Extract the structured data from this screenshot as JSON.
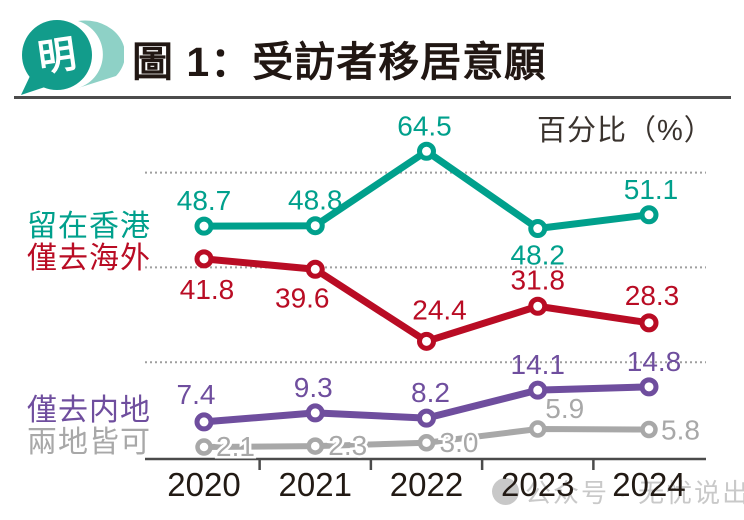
{
  "header": {
    "logo_glyph": "明",
    "title": "圖 1：受訪者移居意願"
  },
  "chart_data": {
    "type": "line",
    "title": "圖 1：受訪者移居意願",
    "unit_label": "百分比（%）",
    "categories": [
      "2020",
      "2021",
      "2022",
      "2023",
      "2024"
    ],
    "series": [
      {
        "name": "留在香港",
        "color": "#00a08c",
        "values": [
          48.7,
          48.8,
          64.5,
          48.2,
          51.1
        ]
      },
      {
        "name": "僅去海外",
        "color": "#b90c24",
        "values": [
          41.8,
          39.6,
          24.4,
          31.8,
          28.3
        ]
      },
      {
        "name": "僅去内地",
        "color": "#6f4e9e",
        "values": [
          7.4,
          9.3,
          8.2,
          14.1,
          14.8
        ]
      },
      {
        "name": "兩地皆可",
        "color": "#a8a8a8",
        "values": [
          2.1,
          2.3,
          3.0,
          5.9,
          5.8
        ]
      }
    ],
    "ylim": [
      0,
      70
    ],
    "grid_values": [
      20,
      40,
      60
    ],
    "grid_style": "dotted horizontal, no y-axis tick labels",
    "legend_position": "left, stacked beside lines",
    "value_labels": "shown at every point, one decimal"
  },
  "watermark": {
    "text": "公众号 · 无忧说出国"
  },
  "colors": {
    "title_text": "#211713",
    "axis": "#4b4b4b",
    "gridline": "#9f9f9f",
    "unit_label_text": "#3a332e",
    "logo_teal": "#129c8b",
    "logo_light_teal": "#8ed1c6"
  }
}
